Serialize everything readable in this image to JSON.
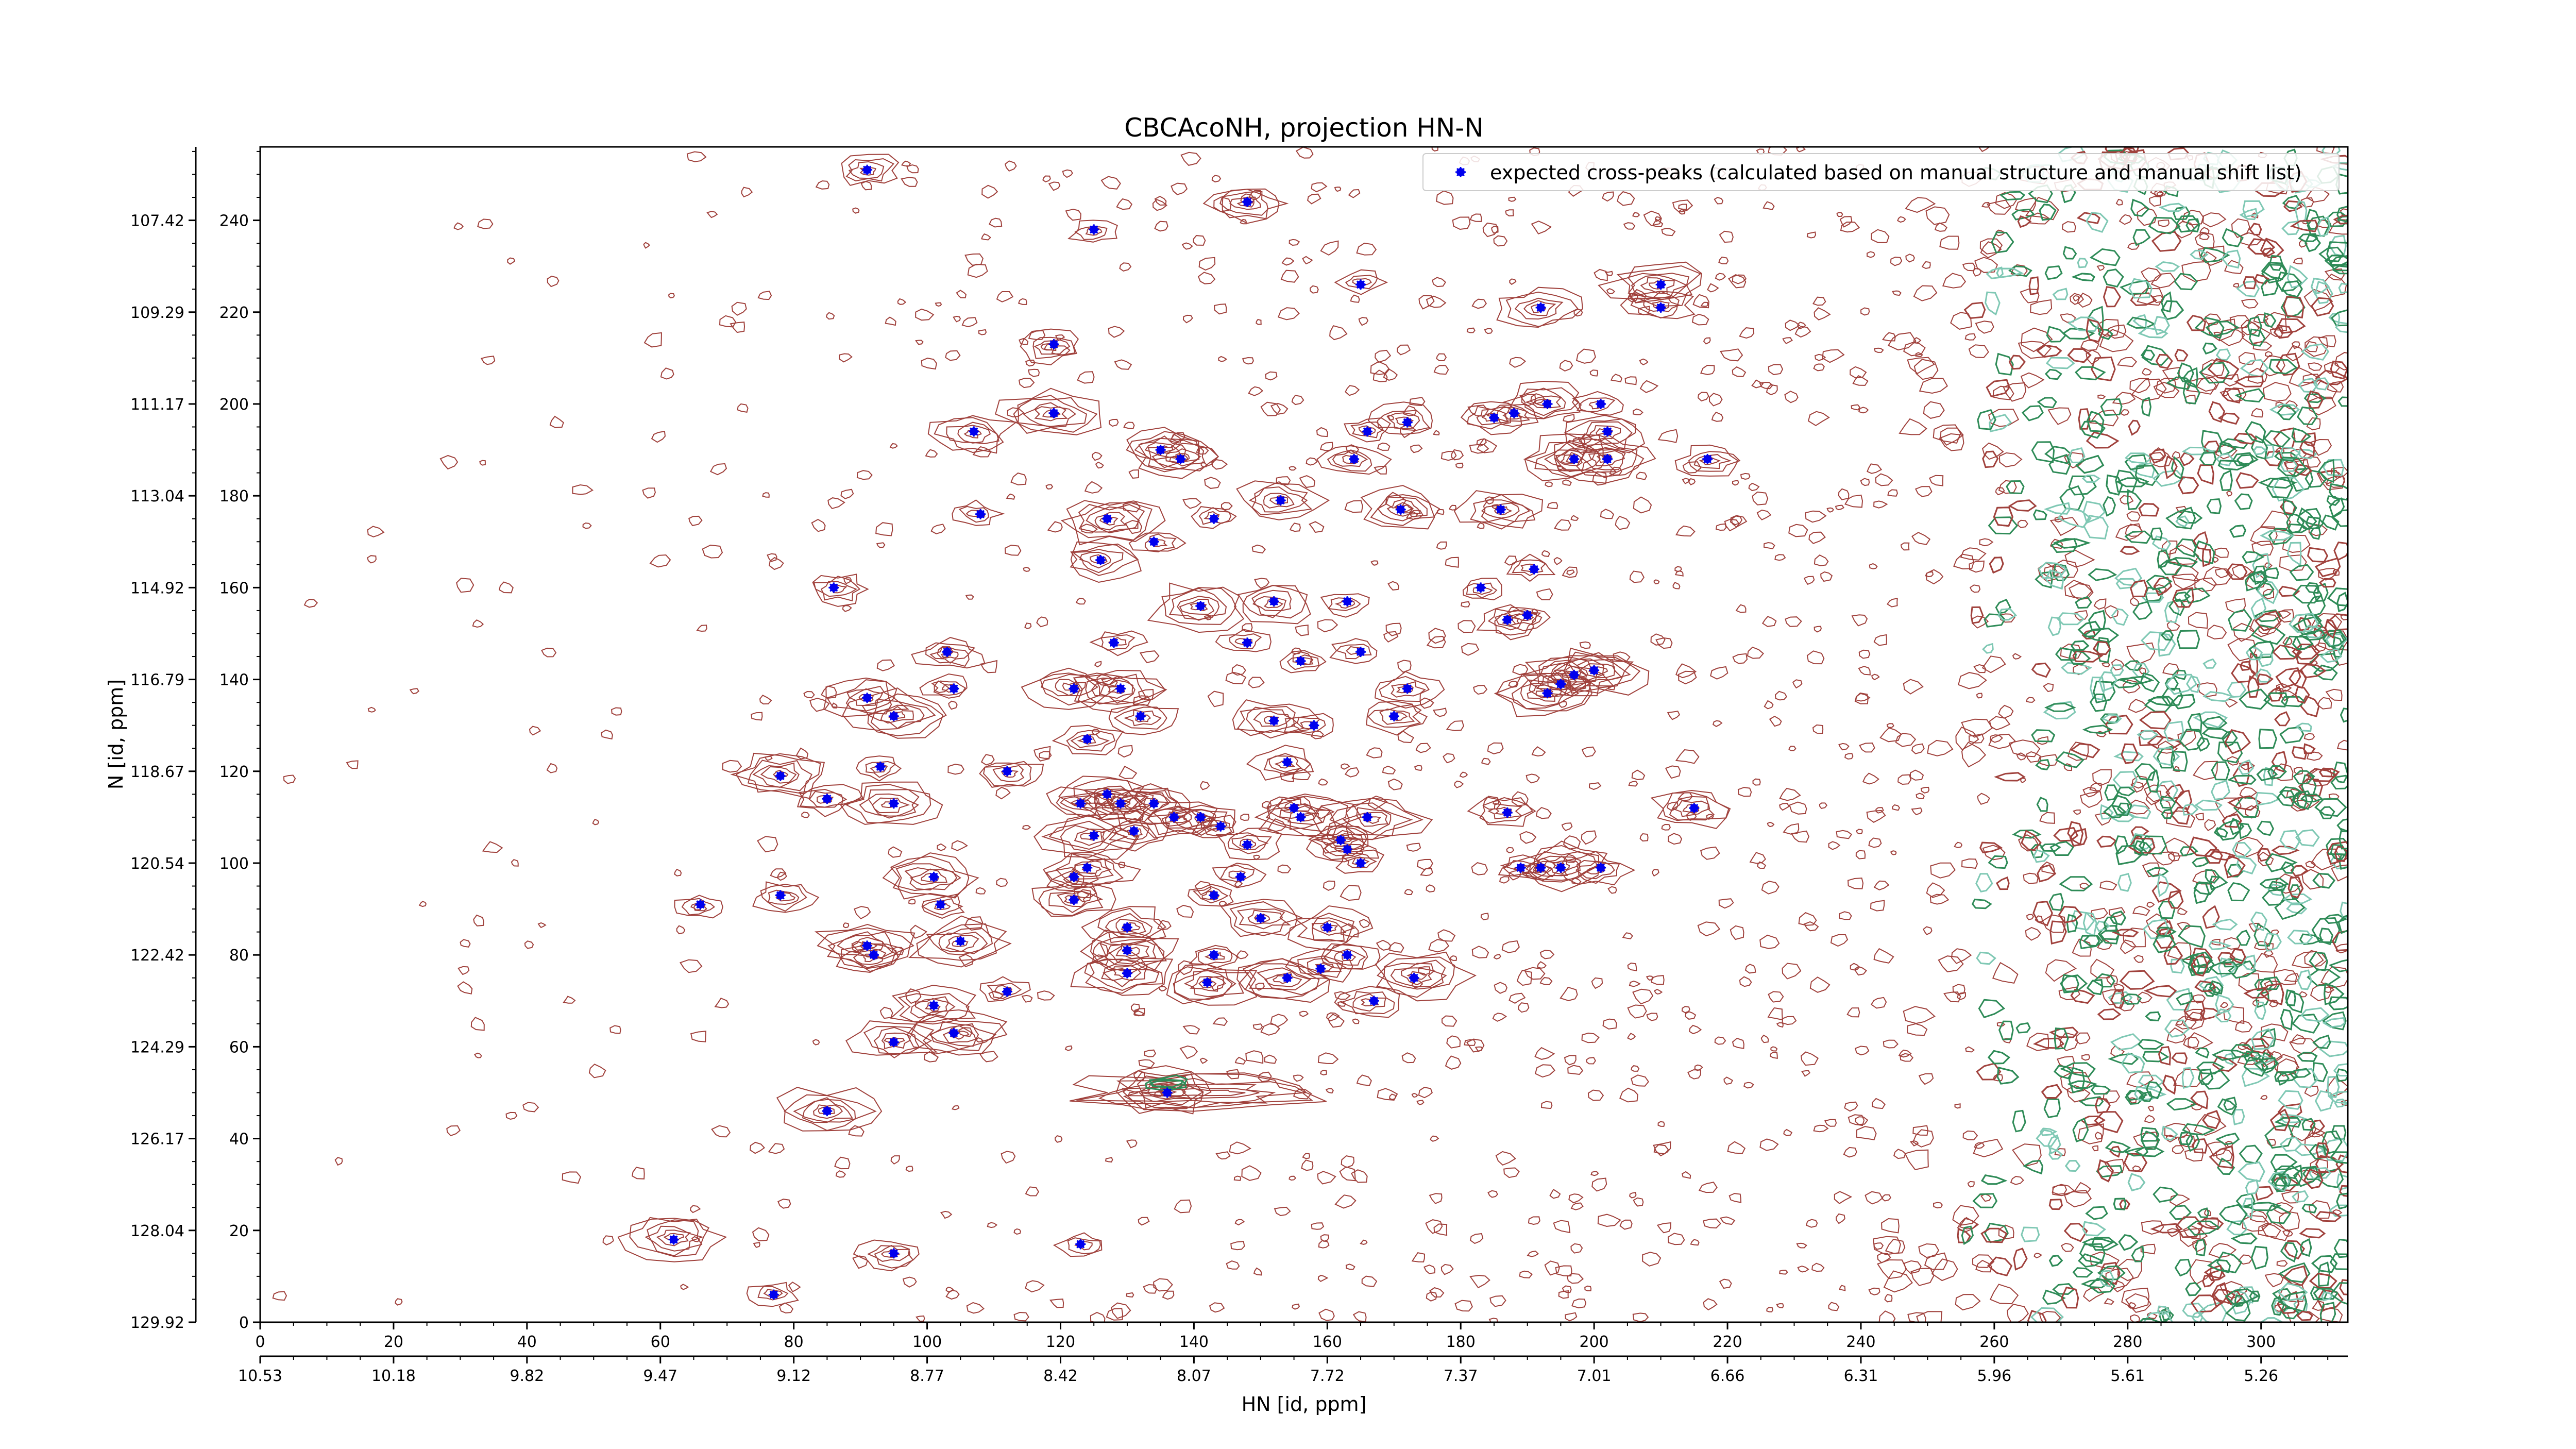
{
  "chart_data": {
    "type": "scatter",
    "title": "CBCAcoNH, projection HN-N",
    "xlabel": "HN [id, ppm]",
    "ylabel": "N [id, ppm]",
    "xlim": [
      0,
      313
    ],
    "ylim": [
      0,
      256
    ],
    "x_ticks": [
      0,
      20,
      40,
      60,
      80,
      100,
      120,
      140,
      160,
      180,
      200,
      220,
      240,
      260,
      280,
      300
    ],
    "y_ticks": [
      0,
      20,
      40,
      60,
      80,
      100,
      120,
      140,
      160,
      180,
      200,
      220,
      240
    ],
    "secondary_x_ticks": [
      "10.53",
      "10.18",
      "9.82",
      "9.47",
      "9.12",
      "8.77",
      "8.42",
      "8.07",
      "7.72",
      "7.37",
      "7.01",
      "6.66",
      "6.31",
      "5.96",
      "5.61",
      "5.26"
    ],
    "secondary_y_ticks": [
      "129.92",
      "128.04",
      "126.17",
      "124.29",
      "122.42",
      "120.54",
      "118.67",
      "116.79",
      "114.92",
      "113.04",
      "111.17",
      "109.29",
      "107.42"
    ],
    "legend": {
      "position": "top-right",
      "label": "expected cross-peaks (calculated based on manual structure and manual shift list)"
    },
    "colors": {
      "marker": "#0000ee",
      "contour_primary": "#a0413c",
      "contour_secondary": "#2e8b57",
      "contour_tertiary": "#7fc8b4"
    },
    "series": [
      {
        "name": "expected cross-peaks (calculated based on manual structure and manual shift list)",
        "points": [
          [
            91,
            251
          ],
          [
            148,
            244
          ],
          [
            125,
            238
          ],
          [
            165,
            226
          ],
          [
            192,
            221
          ],
          [
            210,
            226
          ],
          [
            210,
            221
          ],
          [
            119,
            213
          ],
          [
            193,
            200
          ],
          [
            201,
            200
          ],
          [
            119,
            198
          ],
          [
            185,
            197
          ],
          [
            188,
            198
          ],
          [
            172,
            196
          ],
          [
            107,
            194
          ],
          [
            166,
            194
          ],
          [
            202,
            194
          ],
          [
            135,
            190
          ],
          [
            138,
            188
          ],
          [
            164,
            188
          ],
          [
            197,
            188
          ],
          [
            202,
            188
          ],
          [
            217,
            188
          ],
          [
            153,
            179
          ],
          [
            186,
            177
          ],
          [
            171,
            177
          ],
          [
            108,
            176
          ],
          [
            127,
            175
          ],
          [
            143,
            175
          ],
          [
            134,
            170
          ],
          [
            126,
            166
          ],
          [
            191,
            164
          ],
          [
            86,
            160
          ],
          [
            183,
            160
          ],
          [
            152,
            157
          ],
          [
            163,
            157
          ],
          [
            141,
            156
          ],
          [
            187,
            153
          ],
          [
            190,
            154
          ],
          [
            128,
            148
          ],
          [
            148,
            148
          ],
          [
            165,
            146
          ],
          [
            103,
            146
          ],
          [
            156,
            144
          ],
          [
            200,
            142
          ],
          [
            197,
            141
          ],
          [
            195,
            139
          ],
          [
            193,
            137
          ],
          [
            172,
            138
          ],
          [
            91,
            136
          ],
          [
            104,
            138
          ],
          [
            122,
            138
          ],
          [
            129,
            138
          ],
          [
            95,
            132
          ],
          [
            132,
            132
          ],
          [
            152,
            131
          ],
          [
            158,
            130
          ],
          [
            170,
            132
          ],
          [
            124,
            127
          ],
          [
            154,
            122
          ],
          [
            93,
            121
          ],
          [
            78,
            119
          ],
          [
            112,
            120
          ],
          [
            85,
            114
          ],
          [
            95,
            113
          ],
          [
            123,
            113
          ],
          [
            127,
            115
          ],
          [
            129,
            113
          ],
          [
            134,
            113
          ],
          [
            141,
            110
          ],
          [
            137,
            110
          ],
          [
            144,
            108
          ],
          [
            155,
            112
          ],
          [
            156,
            110
          ],
          [
            166,
            110
          ],
          [
            187,
            111
          ],
          [
            215,
            112
          ],
          [
            125,
            106
          ],
          [
            131,
            107
          ],
          [
            148,
            104
          ],
          [
            162,
            105
          ],
          [
            163,
            103
          ],
          [
            124,
            99
          ],
          [
            122,
            97
          ],
          [
            165,
            100
          ],
          [
            189,
            99
          ],
          [
            192,
            99
          ],
          [
            195,
            99
          ],
          [
            201,
            99
          ],
          [
            101,
            97
          ],
          [
            122,
            92
          ],
          [
            147,
            97
          ],
          [
            143,
            93
          ],
          [
            78,
            93
          ],
          [
            102,
            91
          ],
          [
            66,
            91
          ],
          [
            150,
            88
          ],
          [
            130,
            86
          ],
          [
            160,
            86
          ],
          [
            91,
            82
          ],
          [
            92,
            80
          ],
          [
            105,
            83
          ],
          [
            130,
            81
          ],
          [
            143,
            80
          ],
          [
            163,
            80
          ],
          [
            159,
            77
          ],
          [
            130,
            76
          ],
          [
            154,
            75
          ],
          [
            173,
            75
          ],
          [
            142,
            74
          ],
          [
            112,
            72
          ],
          [
            167,
            70
          ],
          [
            101,
            69
          ],
          [
            104,
            63
          ],
          [
            95,
            61
          ],
          [
            136,
            50
          ],
          [
            85,
            46
          ],
          [
            62,
            18
          ],
          [
            95,
            15
          ],
          [
            123,
            17
          ],
          [
            77,
            6
          ]
        ]
      }
    ]
  }
}
